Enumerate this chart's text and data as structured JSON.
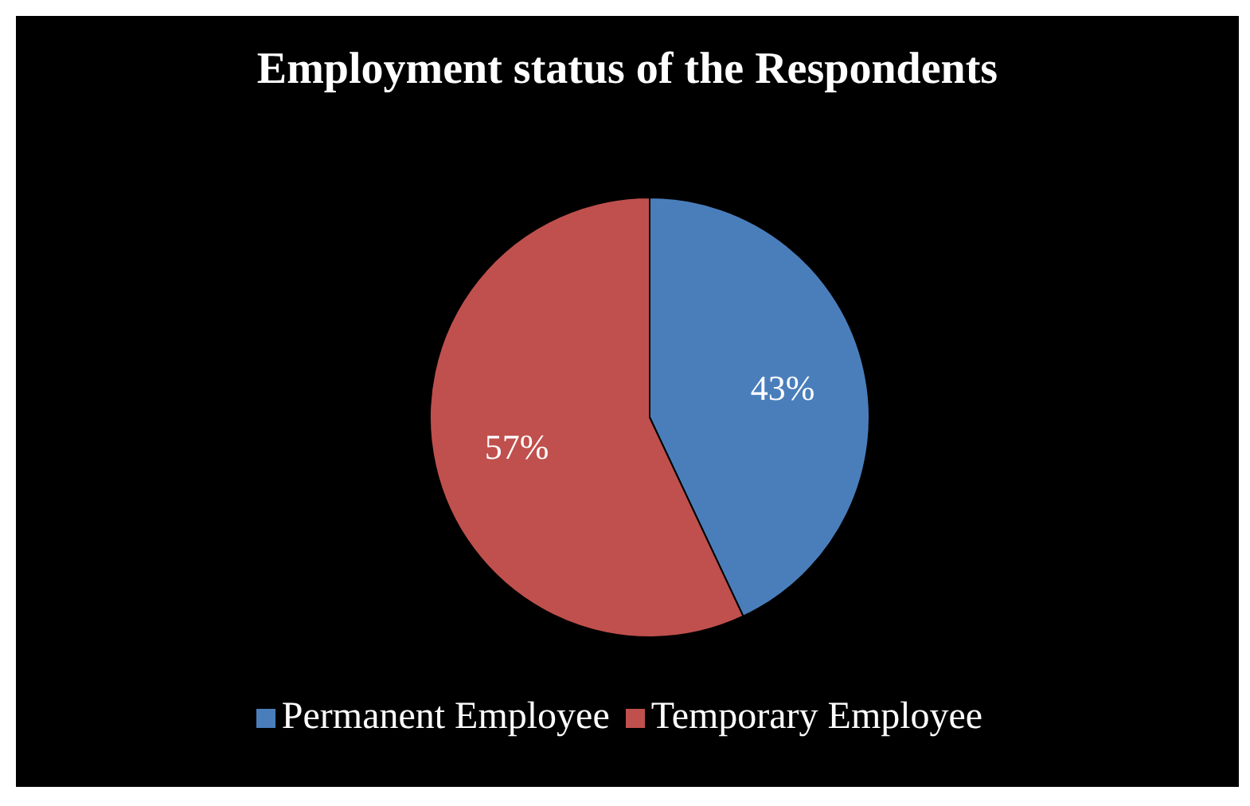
{
  "chart_data": {
    "type": "pie",
    "title": "Employment status of the Respondents",
    "categories": [
      "Permanent Employee",
      "Temporary Employee"
    ],
    "values": [
      43,
      57
    ],
    "colors": [
      "#4a7ebb",
      "#c0504d"
    ],
    "value_labels": [
      "43%",
      "57%"
    ],
    "legend": "bottom"
  }
}
